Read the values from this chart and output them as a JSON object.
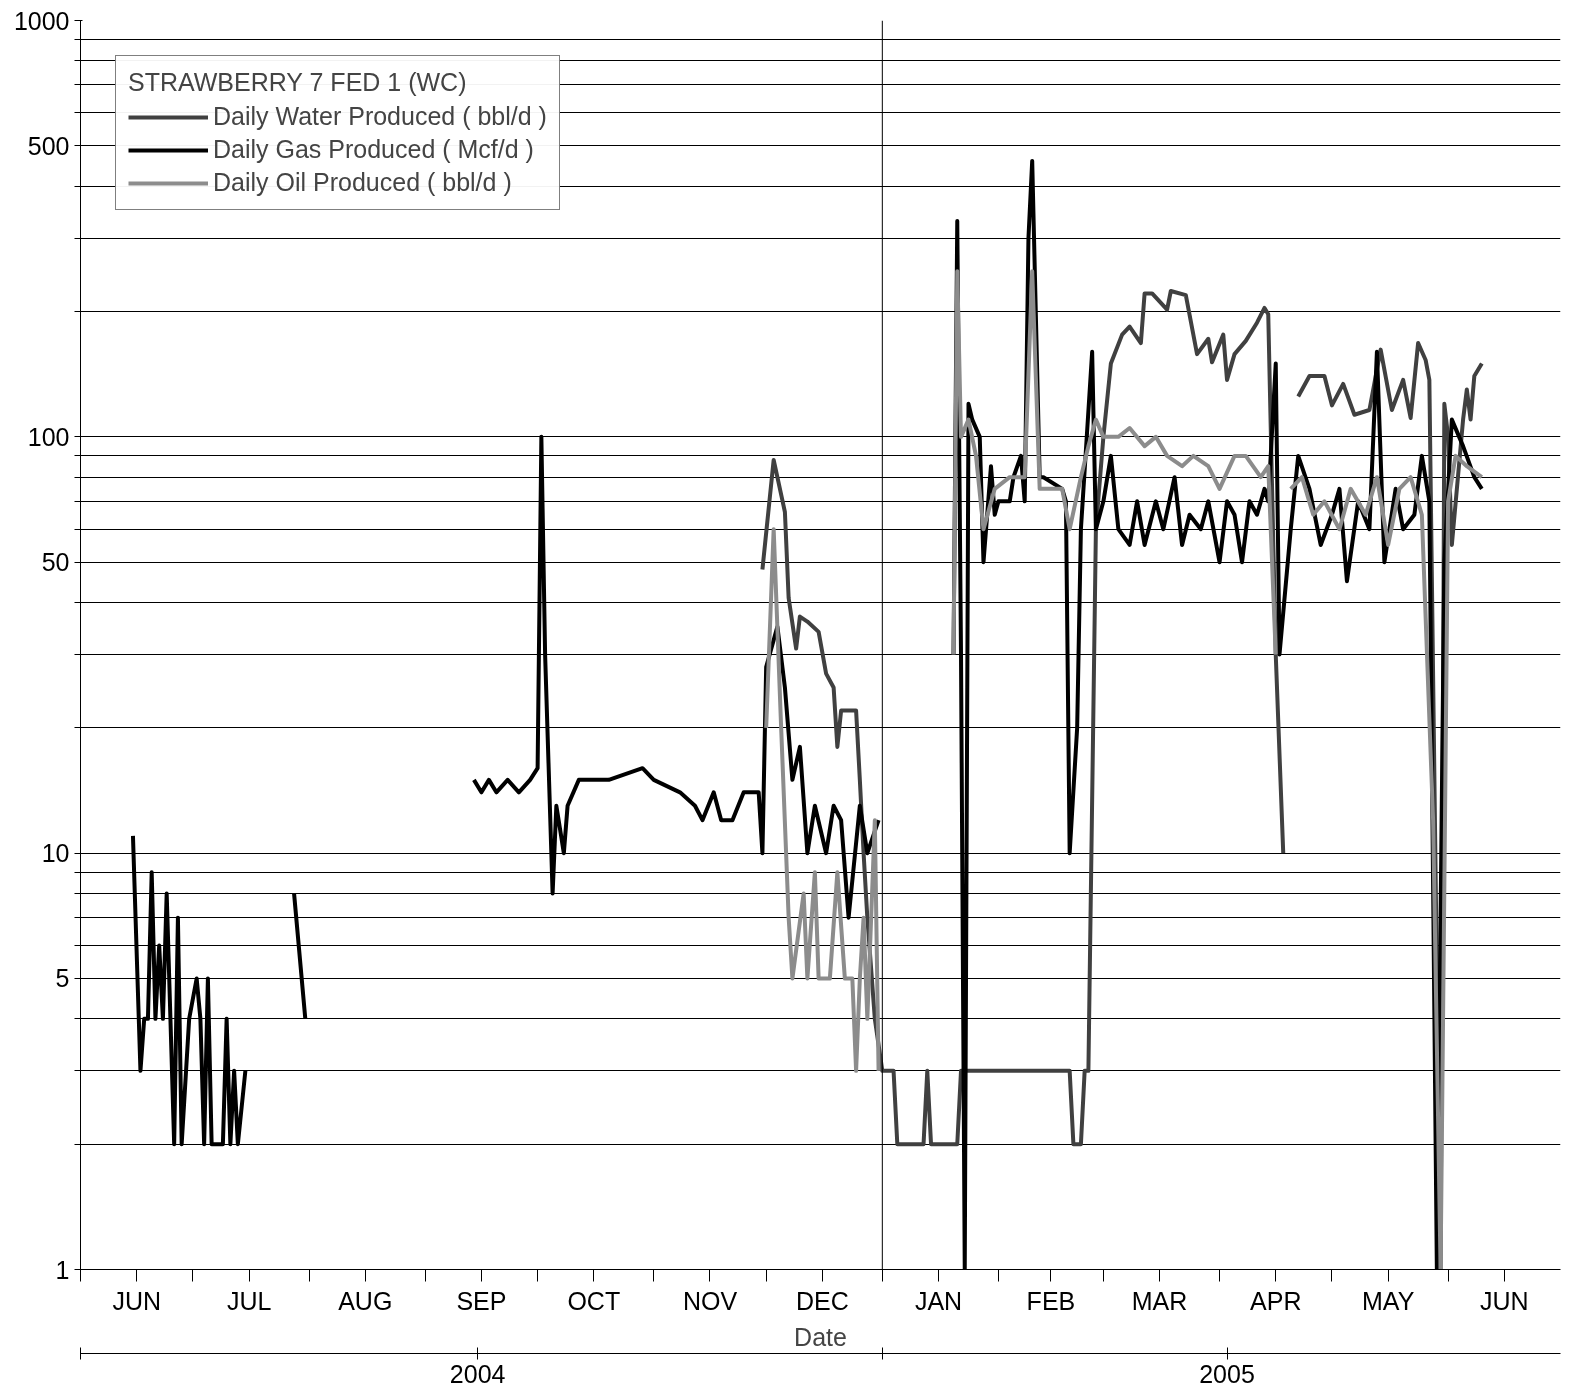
{
  "chart_data": {
    "type": "line",
    "legend_title": "STRAWBERRY 7 FED 1 (WC)",
    "xlabel": "Date",
    "log": "y",
    "grid": "y",
    "legend": "top left",
    "line_style": "solid",
    "xlim": [
      "2004-06-01",
      "2005-07-01"
    ],
    "ylim": [
      1,
      1000
    ],
    "xticks": [
      {
        "value": "2004-06-01",
        "label": null
      },
      {
        "value": "2004-06-16",
        "label": "JUN"
      },
      {
        "value": "2004-07-01",
        "label": null
      },
      {
        "value": "2004-07-16",
        "label": "JUL"
      },
      {
        "value": "2004-08-01",
        "label": null
      },
      {
        "value": "2004-08-16",
        "label": "AUG"
      },
      {
        "value": "2004-09-01",
        "label": null
      },
      {
        "value": "2004-09-16",
        "label": "SEP"
      },
      {
        "value": "2004-10-01",
        "label": null
      },
      {
        "value": "2004-10-16",
        "label": "OCT"
      },
      {
        "value": "2004-11-01",
        "label": null
      },
      {
        "value": "2004-11-16",
        "label": "NOV"
      },
      {
        "value": "2004-12-01",
        "label": null
      },
      {
        "value": "2004-12-16",
        "label": "DEC"
      },
      {
        "value": "2005-01-01",
        "label": null
      },
      {
        "value": "2005-01-16",
        "label": "JAN"
      },
      {
        "value": "2005-02-01",
        "label": null
      },
      {
        "value": "2005-02-15",
        "label": "FEB"
      },
      {
        "value": "2005-03-01",
        "label": null
      },
      {
        "value": "2005-03-16",
        "label": "MAR"
      },
      {
        "value": "2005-04-01",
        "label": null
      },
      {
        "value": "2005-04-16",
        "label": "APR"
      },
      {
        "value": "2005-05-01",
        "label": null
      },
      {
        "value": "2005-05-16",
        "label": "MAY"
      },
      {
        "value": "2005-06-01",
        "label": null
      },
      {
        "value": "2005-06-16",
        "label": "JUN"
      }
    ],
    "x2lim": [
      "2004-06-01",
      "2005-07-01"
    ],
    "x2ticks": [
      {
        "value": "2004-06-01",
        "label": null
      },
      {
        "value": "2004-09-15",
        "label": "2004"
      },
      {
        "value": "2005-01-01",
        "label": null
      },
      {
        "value": "2005-04-03",
        "label": "2005"
      }
    ],
    "yticks": [
      1,
      {
        "value": 2,
        "label": null
      },
      {
        "value": 3,
        "label": null
      },
      {
        "value": 4,
        "label": null
      },
      5,
      {
        "value": 6,
        "label": null
      },
      {
        "value": 7,
        "label": null
      },
      {
        "value": 8,
        "label": null
      },
      {
        "value": 9,
        "label": null
      },
      10,
      {
        "value": 20,
        "label": null
      },
      {
        "value": 30,
        "label": null
      },
      {
        "value": 40,
        "label": null
      },
      50,
      {
        "value": 60,
        "label": null
      },
      {
        "value": 70,
        "label": null
      },
      {
        "value": 80,
        "label": null
      },
      {
        "value": 90,
        "label": null
      },
      100,
      {
        "value": 200,
        "label": null
      },
      {
        "value": 300,
        "label": null
      },
      {
        "value": 400,
        "label": null
      },
      500,
      {
        "value": 600,
        "label": null
      },
      {
        "value": 700,
        "label": null
      },
      {
        "value": 800,
        "label": null
      },
      {
        "value": 900,
        "label": null
      },
      1000
    ],
    "ref_lines": [
      {
        "axis": "x",
        "value": "2005-01-01",
        "label": null
      }
    ],
    "series": [
      {
        "name": "Daily Water Produced ( bbl/d )",
        "color": "#404040",
        "x": [
          "2004-11-30",
          "2004-12-03",
          "2004-12-06",
          "2004-12-07",
          "2004-12-09",
          "2004-12-10",
          "2004-12-12",
          "2004-12-15",
          "2004-12-17",
          "2004-12-19",
          "2004-12-20",
          "2004-12-21",
          "2004-12-25",
          "2004-12-26",
          "2004-12-27",
          "2004-12-28",
          "2004-12-30",
          "2005-01-01",
          "2005-01-04",
          "2005-01-05",
          "2005-01-12",
          "2005-01-13",
          "2005-01-14",
          "2005-01-21",
          "2005-01-22",
          "2005-02-20",
          "2005-02-21",
          "2005-02-23",
          "2005-02-24",
          "2005-02-25",
          "2005-02-27",
          "2005-03-01",
          "2005-03-03",
          "2005-03-06",
          "2005-03-08",
          "2005-03-11",
          "2005-03-12",
          "2005-03-14",
          "2005-03-18",
          "2005-03-19",
          "2005-03-23",
          "2005-03-26",
          "2005-03-29",
          "2005-03-30",
          "2005-04-02",
          "2005-04-03",
          "2005-04-05",
          "2005-04-08",
          "2005-04-11",
          "2005-04-13",
          "2005-04-14",
          "2005-04-16",
          "2005-04-18",
          "2005-04-20",
          "2005-04-22",
          "2005-04-25",
          "2005-04-29",
          "2005-05-01",
          "2005-05-04",
          "2005-05-07",
          "2005-05-11",
          "2005-05-14",
          "2005-05-17",
          "2005-05-20",
          "2005-05-22",
          "2005-05-24",
          "2005-05-26",
          "2005-05-27",
          "2005-05-30",
          "2005-05-31",
          "2005-06-01",
          "2005-06-02",
          "2005-06-05",
          "2005-06-06",
          "2005-06-07",
          "2005-06-08",
          "2005-06-10"
        ],
        "values": [
          48,
          88,
          66,
          41,
          31,
          37,
          36,
          34,
          27,
          25,
          18,
          22,
          22,
          15,
          10,
          7,
          4,
          3,
          3,
          2,
          2,
          3,
          2,
          2,
          3,
          3,
          2,
          2,
          3,
          3,
          60,
          100,
          150,
          176,
          184,
          168,
          221,
          221,
          202,
          224,
          219,
          158,
          172,
          151,
          176,
          137,
          158,
          170,
          188,
          204,
          197,
          30,
          10,
          null,
          125,
          140,
          140,
          119,
          134,
          113,
          116,
          162,
          116,
          137,
          111,
          168,
          153,
          137,
          1,
          120,
          100,
          55,
          110,
          130,
          110,
          140,
          150
        ]
      },
      {
        "name": "Daily Gas Produced ( Mcf/d )",
        "color": "#000000",
        "x": [
          "2004-06-15",
          "2004-06-17",
          "2004-06-18",
          "2004-06-19",
          "2004-06-20",
          "2004-06-21",
          "2004-06-22",
          "2004-06-23",
          "2004-06-24",
          "2004-06-26",
          "2004-06-27",
          "2004-06-28",
          "2004-06-30",
          "2004-07-02",
          "2004-07-03",
          "2004-07-04",
          "2004-07-05",
          "2004-07-06",
          "2004-07-09",
          "2004-07-10",
          "2004-07-11",
          "2004-07-12",
          "2004-07-13",
          "2004-07-15",
          "2004-07-20",
          "2004-07-28",
          "2004-07-31",
          "2004-08-15",
          "2004-09-14",
          "2004-09-16",
          "2004-09-18",
          "2004-09-20",
          "2004-09-23",
          "2004-09-26",
          "2004-09-29",
          "2004-10-01",
          "2004-10-02",
          "2004-10-03",
          "2004-10-05",
          "2004-10-06",
          "2004-10-08",
          "2004-10-09",
          "2004-10-12",
          "2004-10-20",
          "2004-10-29",
          "2004-11-01",
          "2004-11-08",
          "2004-11-12",
          "2004-11-14",
          "2004-11-17",
          "2004-11-19",
          "2004-11-22",
          "2004-11-25",
          "2004-11-29",
          "2004-11-30",
          "2004-12-01",
          "2004-12-04",
          "2004-12-06",
          "2004-12-08",
          "2004-12-10",
          "2004-12-12",
          "2004-12-14",
          "2004-12-17",
          "2004-12-19",
          "2004-12-21",
          "2004-12-23",
          "2004-12-26",
          "2004-12-28",
          "2004-12-31",
          "2005-01-10",
          "2005-01-20",
          "2005-01-21",
          "2005-01-22",
          "2005-01-23",
          "2005-01-24",
          "2005-01-25",
          "2005-01-27",
          "2005-01-28",
          "2005-01-30",
          "2005-01-31",
          "2005-02-01",
          "2005-02-04",
          "2005-02-05",
          "2005-02-07",
          "2005-02-08",
          "2005-02-09",
          "2005-02-10",
          "2005-02-12",
          "2005-02-13",
          "2005-02-18",
          "2005-02-19",
          "2005-02-20",
          "2005-02-22",
          "2005-02-23",
          "2005-02-26",
          "2005-02-27",
          "2005-03-01",
          "2005-03-03",
          "2005-03-05",
          "2005-03-08",
          "2005-03-10",
          "2005-03-12",
          "2005-03-15",
          "2005-03-17",
          "2005-03-20",
          "2005-03-22",
          "2005-03-24",
          "2005-03-27",
          "2005-03-29",
          "2005-04-01",
          "2005-04-03",
          "2005-04-05",
          "2005-04-07",
          "2005-04-09",
          "2005-04-11",
          "2005-04-13",
          "2005-04-14",
          "2005-04-16",
          "2005-04-17",
          "2005-04-20",
          "2005-04-22",
          "2005-04-25",
          "2005-04-28",
          "2005-05-01",
          "2005-05-03",
          "2005-05-05",
          "2005-05-08",
          "2005-05-11",
          "2005-05-13",
          "2005-05-15",
          "2005-05-18",
          "2005-05-20",
          "2005-05-23",
          "2005-05-25",
          "2005-05-27",
          "2005-05-29",
          "2005-05-31",
          "2005-06-02",
          "2005-06-05",
          "2005-06-08",
          "2005-06-10"
        ],
        "values": [
          11,
          3,
          4,
          4,
          9,
          4,
          6,
          4,
          8,
          2,
          7,
          2,
          4,
          5,
          4,
          2,
          5,
          2,
          2,
          4,
          2,
          3,
          2,
          3,
          null,
          8,
          4,
          null,
          15,
          14,
          15,
          14,
          15,
          14,
          15,
          16,
          100,
          30,
          8,
          13,
          10,
          13,
          15,
          15,
          16,
          15,
          14,
          13,
          12,
          14,
          12,
          12,
          14,
          14,
          10,
          28,
          35,
          25,
          15,
          18,
          10,
          13,
          10,
          13,
          12,
          7,
          13,
          10,
          12,
          null,
          30,
          330,
          30,
          1,
          120,
          110,
          100,
          50,
          85,
          65,
          70,
          70,
          80,
          90,
          70,
          300,
          460,
          80,
          80,
          75,
          70,
          10,
          20,
          60,
          160,
          60,
          70,
          90,
          60,
          55,
          70,
          55,
          70,
          60,
          80,
          55,
          65,
          60,
          70,
          50,
          70,
          65,
          50,
          70,
          65,
          75,
          70,
          150,
          30,
          60,
          90,
          75,
          55,
          65,
          75,
          45,
          70,
          60,
          160,
          50,
          75,
          60,
          65,
          90,
          70,
          1,
          50,
          110,
          95,
          80,
          75
        ]
      },
      {
        "name": "Daily Oil Produced ( bbl/d )",
        "color": "#8c8c8c",
        "x": [
          "2004-12-01",
          "2004-12-03",
          "2004-12-05",
          "2004-12-07",
          "2004-12-08",
          "2004-12-11",
          "2004-12-12",
          "2004-12-14",
          "2004-12-15",
          "2004-12-18",
          "2004-12-20",
          "2004-12-22",
          "2004-12-24",
          "2004-12-25",
          "2004-12-26",
          "2004-12-27",
          "2004-12-28",
          "2004-12-30",
          "2004-12-31",
          "2005-01-01",
          "2005-01-20",
          "2005-01-21",
          "2005-01-22",
          "2005-01-24",
          "2005-01-26",
          "2005-01-28",
          "2005-01-31",
          "2005-02-04",
          "2005-02-08",
          "2005-02-10",
          "2005-02-12",
          "2005-02-18",
          "2005-02-20",
          "2005-02-23",
          "2005-02-25",
          "2005-02-27",
          "2005-03-01",
          "2005-03-05",
          "2005-03-08",
          "2005-03-12",
          "2005-03-15",
          "2005-03-18",
          "2005-03-22",
          "2005-03-25",
          "2005-03-29",
          "2005-04-01",
          "2005-04-05",
          "2005-04-08",
          "2005-04-12",
          "2005-04-14",
          "2005-04-16",
          "2005-04-18",
          "2005-04-20",
          "2005-04-23",
          "2005-04-26",
          "2005-04-29",
          "2005-05-03",
          "2005-05-06",
          "2005-05-10",
          "2005-05-13",
          "2005-05-16",
          "2005-05-19",
          "2005-05-22",
          "2005-05-25",
          "2005-05-28",
          "2005-05-30",
          "2005-06-01",
          "2005-06-03",
          "2005-06-06",
          "2005-06-10"
        ],
        "values": [
          20,
          60,
          20,
          7,
          5,
          8,
          5,
          9,
          5,
          5,
          9,
          5,
          5,
          3,
          5,
          7,
          4,
          12,
          3,
          null,
          30,
          250,
          100,
          110,
          90,
          60,
          75,
          80,
          80,
          250,
          75,
          75,
          60,
          80,
          95,
          110,
          100,
          100,
          105,
          95,
          100,
          90,
          85,
          90,
          85,
          75,
          90,
          90,
          80,
          85,
          30,
          null,
          75,
          80,
          65,
          70,
          60,
          75,
          65,
          80,
          55,
          75,
          80,
          65,
          12,
          1,
          70,
          90,
          85,
          80
        ]
      }
    ]
  }
}
